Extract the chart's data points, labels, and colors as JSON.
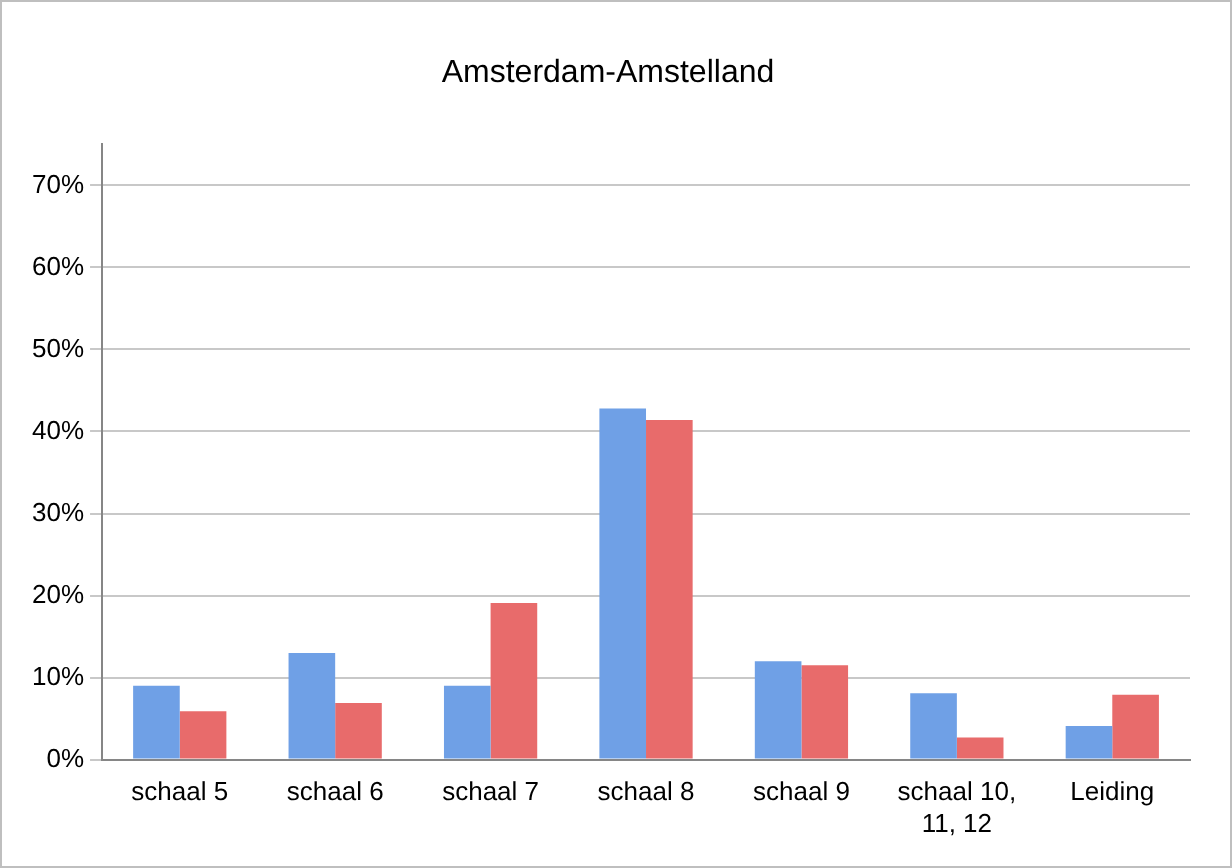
{
  "chart_data": {
    "type": "bar",
    "title": "Amsterdam-Amstelland",
    "categories": [
      "schaal 5",
      "schaal 6",
      "schaal 7",
      "schaal 8",
      "schaal 9",
      "schaal 10, 11, 12",
      "Leiding"
    ],
    "series": [
      {
        "color": "#6fa0e6",
        "values": [
          9.0,
          13.0,
          9.0,
          42.8,
          12.0,
          8.1,
          4.1
        ]
      },
      {
        "color": "#e86b6b",
        "values": [
          5.9,
          6.9,
          19.1,
          41.4,
          11.5,
          2.7,
          7.9
        ]
      }
    ],
    "ylim": [
      0,
      75
    ],
    "yticks": [
      {
        "value": 0,
        "label": "0%"
      },
      {
        "value": 10,
        "label": "10%"
      },
      {
        "value": 20,
        "label": "20%"
      },
      {
        "value": 30,
        "label": "30%"
      },
      {
        "value": 40,
        "label": "40%"
      },
      {
        "value": 50,
        "label": "50%"
      },
      {
        "value": 60,
        "label": "60%"
      },
      {
        "value": 70,
        "label": "70%"
      }
    ],
    "grid": "y",
    "legend": false
  }
}
